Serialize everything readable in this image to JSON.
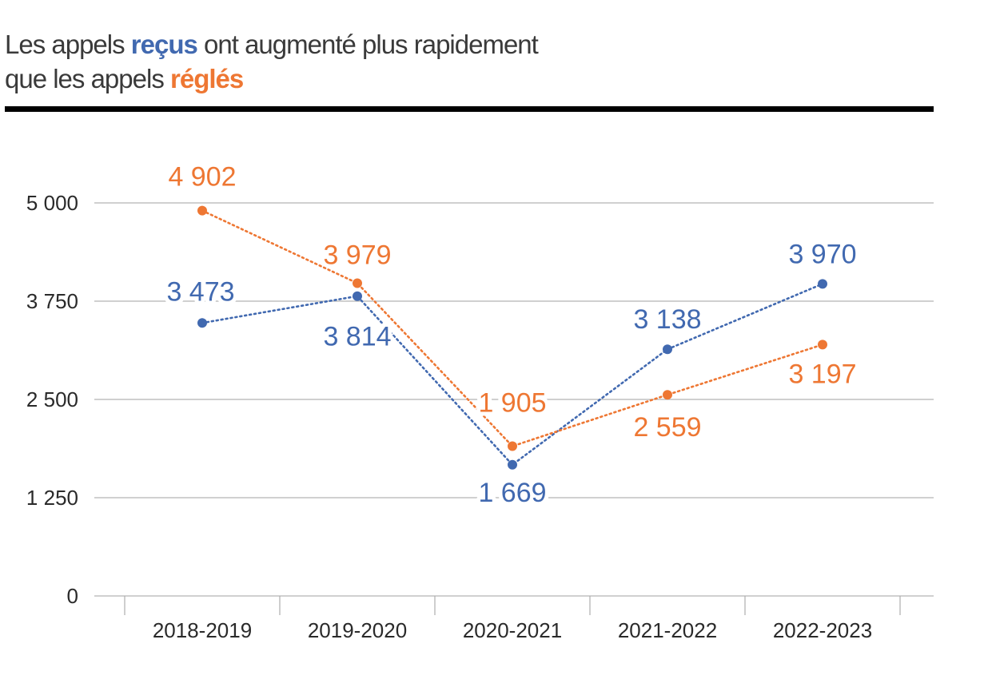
{
  "title": {
    "part1": "Les appels ",
    "recus": "reçus",
    "part2": " ont augmenté plus rapidement",
    "part3": "que les appels ",
    "regles": "réglés"
  },
  "colors": {
    "recus": "#4169b0",
    "regles": "#ee7733",
    "grid": "#b3b3b3",
    "text": "#3a3a3a"
  },
  "chart_data": {
    "type": "line",
    "categories": [
      "2018-2019",
      "2019-2020",
      "2020-2021",
      "2021-2022",
      "2022-2023"
    ],
    "ylim": [
      0,
      5000
    ],
    "yticks": [
      0,
      1250,
      2500,
      3750,
      5000
    ],
    "ytick_labels": [
      "0",
      "1 250",
      "2 500",
      "3 750",
      "5 000"
    ],
    "grid": true,
    "line_style": "dotted",
    "series": [
      {
        "key": "recus",
        "values": [
          3473,
          3814,
          1669,
          3138,
          3970
        ],
        "labels": [
          "3 473",
          "3 814",
          "1 669",
          "3 138",
          "3 970"
        ]
      },
      {
        "key": "regles",
        "values": [
          4902,
          3979,
          1905,
          2559,
          3197
        ],
        "labels": [
          "4 902",
          "3 979",
          "1 905",
          "2 559",
          "3 197"
        ]
      }
    ]
  }
}
